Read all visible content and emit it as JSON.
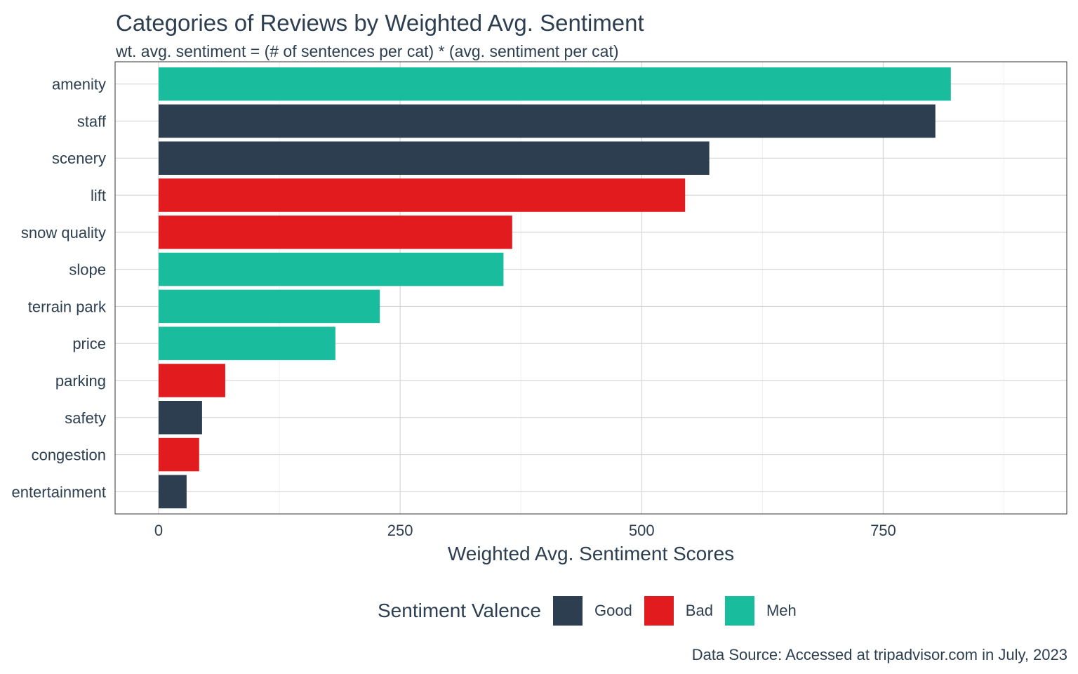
{
  "chart_data": {
    "type": "bar",
    "orientation": "horizontal",
    "title": "Categories of Reviews by Weighted Avg. Sentiment",
    "subtitle": "wt. avg. sentiment = (# of sentences per cat) * (avg. sentiment per cat)",
    "xlabel": "Weighted Avg. Sentiment Scores",
    "ylabel": "",
    "xlim": [
      -45,
      940
    ],
    "x_ticks": [
      0,
      250,
      500,
      750
    ],
    "x_tick_labels": [
      "0",
      "250",
      "500",
      "750"
    ],
    "grid": true,
    "categories": [
      "amenity",
      "staff",
      "scenery",
      "lift",
      "snow quality",
      "slope",
      "terrain park",
      "price",
      "parking",
      "safety",
      "congestion",
      "entertainment"
    ],
    "values": [
      820,
      804,
      570,
      545,
      366,
      357,
      229,
      183,
      69,
      45,
      42,
      29
    ],
    "valence": [
      "Meh",
      "Good",
      "Good",
      "Bad",
      "Bad",
      "Meh",
      "Meh",
      "Meh",
      "Bad",
      "Good",
      "Bad",
      "Good"
    ],
    "legend": {
      "title": "Sentiment Valence",
      "position": "bottom",
      "entries": [
        {
          "label": "Good",
          "color": "#2d3e50"
        },
        {
          "label": "Bad",
          "color": "#e21b1e"
        },
        {
          "label": "Meh",
          "color": "#19bc9c"
        }
      ]
    },
    "caption": "Data Source: Accessed at tripadvisor.com in July, 2023"
  }
}
